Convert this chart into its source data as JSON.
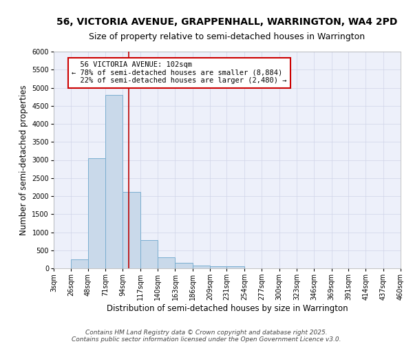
{
  "title": "56, VICTORIA AVENUE, GRAPPENHALL, WARRINGTON, WA4 2PD",
  "subtitle": "Size of property relative to semi-detached houses in Warrington",
  "xlabel": "Distribution of semi-detached houses by size in Warrington",
  "ylabel": "Number of semi-detached properties",
  "footer_line1": "Contains HM Land Registry data © Crown copyright and database right 2025.",
  "footer_line2": "Contains public sector information licensed under the Open Government Licence v3.0.",
  "bin_edges": [
    3,
    26,
    48,
    71,
    94,
    117,
    140,
    163,
    186,
    209,
    231,
    254,
    277,
    300,
    323,
    346,
    369,
    391,
    414,
    437,
    460
  ],
  "bar_values": [
    0,
    240,
    3050,
    4800,
    2120,
    775,
    305,
    145,
    75,
    50,
    50,
    0,
    0,
    0,
    0,
    0,
    0,
    0,
    0,
    0
  ],
  "bar_color": "#c9d9ea",
  "bar_edgecolor": "#7aaed0",
  "bar_linewidth": 0.7,
  "grid_color": "#d0d4e8",
  "background_color": "#edf0fa",
  "property_sqm": 102,
  "property_label": "56 VICTORIA AVENUE: 102sqm",
  "pct_smaller": 78,
  "pct_larger": 22,
  "count_smaller": 8884,
  "count_larger": 2480,
  "vline_color": "#bb0000",
  "annotation_box_color": "#cc0000",
  "ylim": [
    0,
    6000
  ],
  "yticks": [
    0,
    500,
    1000,
    1500,
    2000,
    2500,
    3000,
    3500,
    4000,
    4500,
    5000,
    5500,
    6000
  ],
  "title_fontsize": 10,
  "subtitle_fontsize": 9,
  "axis_label_fontsize": 8.5,
  "tick_fontsize": 7,
  "annotation_fontsize": 7.5,
  "footer_fontsize": 6.5
}
